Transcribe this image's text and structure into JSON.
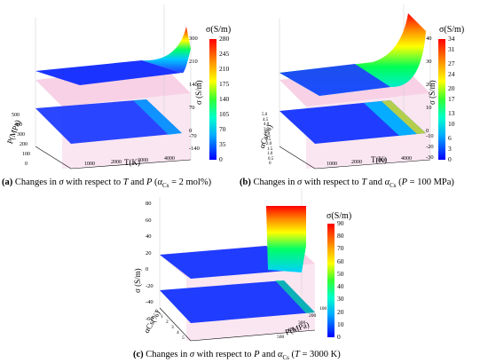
{
  "chart_data": [
    {
      "type": "surface",
      "zlabel": "σ (S/m)",
      "xlabel": "T(K)",
      "ylabel": "P(MPa)",
      "x_ticks": [
        "1000",
        "2000",
        "3000",
        "4000"
      ],
      "y_ticks": [
        "0",
        "100",
        "200",
        "300",
        "400",
        "500"
      ],
      "z_ticks": [
        "300",
        "210",
        "140",
        "70",
        "0"
      ],
      "z_lower_ticks": [
        "-70",
        "-140"
      ],
      "colorbar_title": "σ(S/m)",
      "colorbar_ticks": [
        "280",
        "245",
        "210",
        "175",
        "140",
        "105",
        "70",
        "35",
        "0"
      ],
      "colorbar_range": [
        0,
        280
      ],
      "caption": {
        "label": "(a)",
        "text_parts": [
          "Changes in ",
          "σ",
          " with respect to ",
          "T",
          " and ",
          "P",
          " (",
          "α",
          "Cs",
          " = 2 mol%)"
        ]
      }
    },
    {
      "type": "surface",
      "zlabel": "σ (S/m)",
      "xlabel": "T(K)",
      "ylabel": "αCs(%)",
      "x_ticks": [
        "1000",
        "2000",
        "3000",
        "4000"
      ],
      "y_ticks": [
        "0",
        "0.5",
        "1.0",
        "1.5",
        "2.0",
        "2.5",
        "3.0",
        "3.5",
        "4.0",
        "4.5",
        "5.0"
      ],
      "z_ticks": [
        "40",
        "30",
        "20",
        "10",
        "0"
      ],
      "z_lower_ticks": [
        "-10",
        "-20",
        "-30"
      ],
      "colorbar_title": "σ(S/m)",
      "colorbar_ticks": [
        "34",
        "31",
        "27",
        "24",
        "20",
        "17",
        "13",
        "10",
        "6",
        "3",
        "0"
      ],
      "colorbar_range": [
        0,
        34
      ],
      "caption": {
        "label": "(b)",
        "text_parts": [
          "Changes in ",
          "σ",
          " with respect to ",
          "T",
          " and ",
          "α",
          "Cs",
          " (",
          "P",
          " = 100 MPa)"
        ]
      }
    },
    {
      "type": "surface",
      "zlabel": "σ (S/m)",
      "xlabel": "P(MPa)",
      "ylabel": "αCs(%)",
      "x_ticks": [
        "100",
        "200",
        "300",
        "400",
        "500"
      ],
      "y_ticks": [
        "0",
        "1",
        "2",
        "3",
        "4",
        "5"
      ],
      "z_ticks": [
        "80",
        "60",
        "40",
        "20",
        "0",
        "-20",
        "-40",
        "-60"
      ],
      "colorbar_title": "σ(S/m)",
      "colorbar_ticks": [
        "90",
        "80",
        "70",
        "60",
        "50",
        "40",
        "30",
        "20",
        "10",
        "0"
      ],
      "colorbar_range": [
        0,
        90
      ],
      "caption": {
        "label": "(c)",
        "text_parts": [
          "Changes in ",
          "σ",
          " with respect to ",
          "P",
          " and ",
          "α",
          "Cs",
          " (",
          "T",
          " = 3000 K)"
        ]
      }
    }
  ]
}
